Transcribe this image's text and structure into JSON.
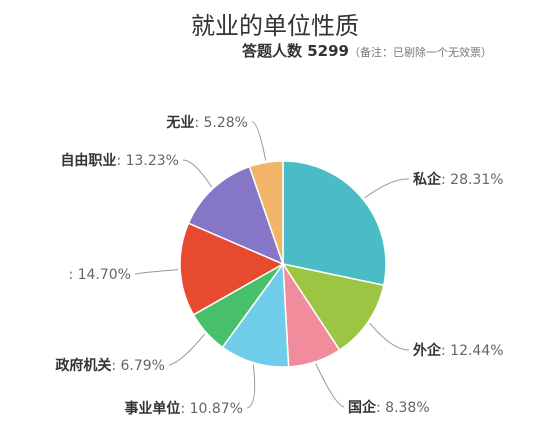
{
  "title": "就业的单位性质",
  "subtitle": "答题人数 5299",
  "note": "（备注：已剔除一个无效票）",
  "chart_data": {
    "type": "pie",
    "title": "就业的单位性质",
    "subtitle": "答题人数 5299（备注：已剔除一个无效票）",
    "start_angle_deg": 0,
    "direction": "clockwise",
    "slices": [
      {
        "name": "私企",
        "value": 28.31,
        "label": "28.31%",
        "color": "#4bbbc5"
      },
      {
        "name": "外企",
        "value": 12.44,
        "label": "12.44%",
        "color": "#9bc543"
      },
      {
        "name": "国企",
        "value": 8.38,
        "label": "8.38%",
        "color": "#f08c9c"
      },
      {
        "name": "事业单位",
        "value": 10.87,
        "label": "10.87%",
        "color": "#6fcdea"
      },
      {
        "name": "政府机关",
        "value": 6.79,
        "label": "6.79%",
        "color": "#48c06b"
      },
      {
        "name": "",
        "value": 14.7,
        "label": "14.70%",
        "color": "#e84a2f"
      },
      {
        "name": "自由职业",
        "value": 13.23,
        "label": "13.23%",
        "color": "#8576c7"
      },
      {
        "name": "无业",
        "value": 5.28,
        "label": "5.28%",
        "color": "#f2b567"
      }
    ]
  }
}
